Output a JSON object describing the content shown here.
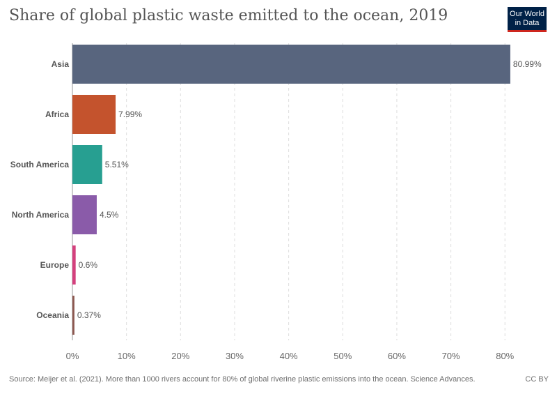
{
  "header": {
    "title": "Share of global plastic waste emitted to the ocean, 2019",
    "logo_line1": "Our World",
    "logo_line2": "in Data"
  },
  "chart_data": {
    "type": "bar",
    "orientation": "horizontal",
    "categories": [
      "Asia",
      "Africa",
      "South America",
      "North America",
      "Europe",
      "Oceania"
    ],
    "values": [
      80.99,
      7.99,
      5.51,
      4.5,
      0.6,
      0.37
    ],
    "value_labels": [
      "80.99%",
      "7.99%",
      "5.51%",
      "4.5%",
      "0.6%",
      "0.37%"
    ],
    "colors": [
      "#58657e",
      "#c4532d",
      "#279f91",
      "#8a5ba9",
      "#d4407d",
      "#8c5850"
    ],
    "xlim": [
      0,
      81
    ],
    "xticks": [
      0,
      10,
      20,
      30,
      40,
      50,
      60,
      70,
      80
    ],
    "xtick_labels": [
      "0%",
      "10%",
      "20%",
      "30%",
      "40%",
      "50%",
      "60%",
      "70%",
      "80%"
    ],
    "grid": "vertical dashed"
  },
  "footer": {
    "source": "Source: Meijer et al. (2021). More than 1000 rivers account for 80% of global riverine plastic emissions into the ocean. Science Advances.",
    "license": "CC BY"
  }
}
